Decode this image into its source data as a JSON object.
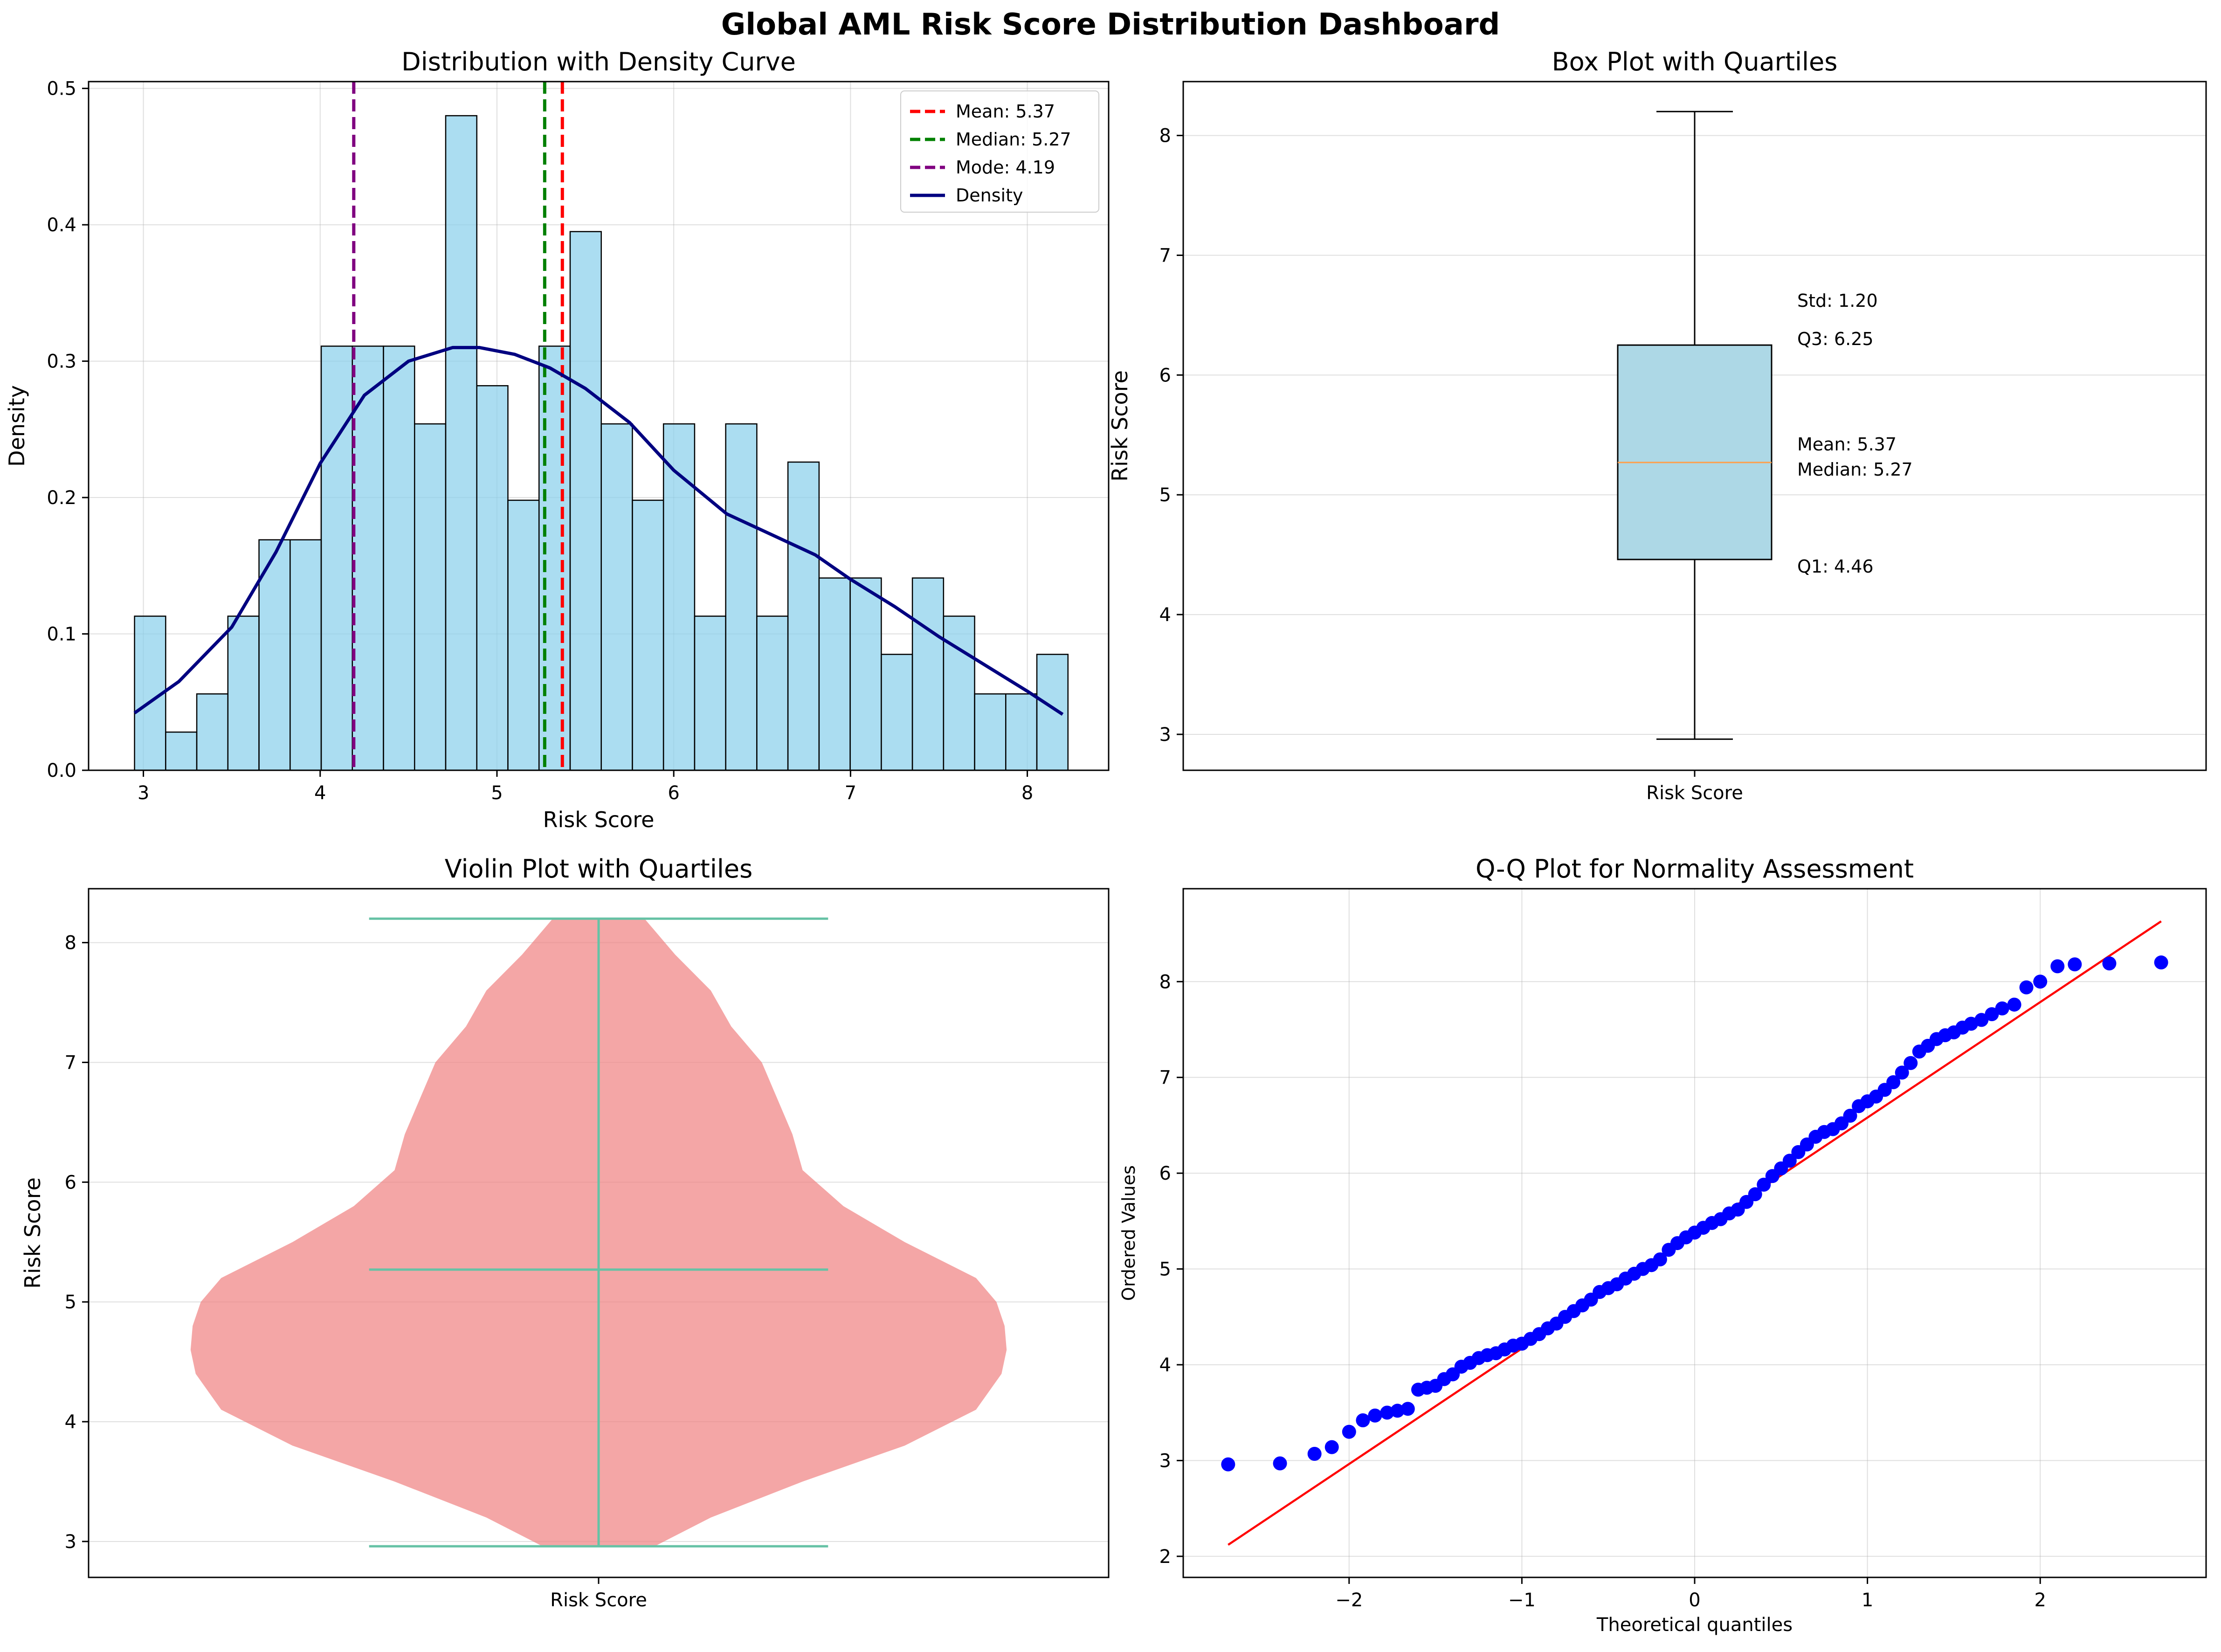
{
  "title": "Global AML Risk Score Distribution Dashboard",
  "colors": {
    "hist_fill": "#87ceeb",
    "hist_edge": "#000000",
    "mean_line": "#ff0000",
    "median_line": "#008000",
    "mode_line": "#800080",
    "density_line": "#000080",
    "box_fill": "#add8e6",
    "box_median": "#ff9f4a",
    "violin_fill": "#f08080",
    "violin_lines": "#66c2a5",
    "qq_points": "#0000ff",
    "qq_line": "#ff0000"
  },
  "chart_data": [
    {
      "type": "bar",
      "title": "Distribution with Density Curve",
      "xlabel": "Risk Score",
      "ylabel": "Density",
      "xlim": [
        2.69,
        8.46
      ],
      "ylim": [
        0,
        0.505
      ],
      "xticks": [
        "3",
        "4",
        "5",
        "6",
        "7",
        "8"
      ],
      "xtick_values": [
        3,
        4,
        5,
        6,
        7,
        8
      ],
      "yticks": [
        "0.0",
        "0.1",
        "0.2",
        "0.3",
        "0.4",
        "0.5"
      ],
      "ytick_values": [
        0,
        0.1,
        0.2,
        0.3,
        0.4,
        0.5
      ],
      "grid": true,
      "legend_position": "top-right",
      "bin_start": 2.95,
      "bin_width": 0.176,
      "values": [
        0.113,
        0.028,
        0.056,
        0.113,
        0.169,
        0.169,
        0.311,
        0.311,
        0.311,
        0.254,
        0.48,
        0.282,
        0.198,
        0.311,
        0.395,
        0.254,
        0.198,
        0.254,
        0.113,
        0.254,
        0.113,
        0.226,
        0.141,
        0.141,
        0.085,
        0.141,
        0.113,
        0.056,
        0.056,
        0.085
      ],
      "density_curve": {
        "x": [
          2.95,
          3.2,
          3.5,
          3.75,
          4.0,
          4.25,
          4.5,
          4.75,
          4.9,
          5.1,
          5.3,
          5.5,
          5.75,
          6.0,
          6.3,
          6.6,
          6.8,
          7.0,
          7.25,
          7.5,
          7.75,
          8.0,
          8.2
        ],
        "y": [
          0.042,
          0.065,
          0.105,
          0.16,
          0.225,
          0.275,
          0.3,
          0.31,
          0.31,
          0.305,
          0.295,
          0.28,
          0.255,
          0.22,
          0.188,
          0.17,
          0.158,
          0.14,
          0.12,
          0.098,
          0.078,
          0.058,
          0.041
        ]
      },
      "ref_lines": [
        {
          "value": 5.37,
          "label": "Mean: 5.37",
          "color": "#ff0000"
        },
        {
          "value": 5.27,
          "label": "Median: 5.27",
          "color": "#008000"
        },
        {
          "value": 4.19,
          "label": "Mode: 4.19",
          "color": "#800080"
        }
      ],
      "density_label": "Density"
    },
    {
      "type": "box",
      "title": "Box Plot with Quartiles",
      "ylabel": "Risk Score",
      "category": "Risk Score",
      "ylim": [
        2.7,
        8.45
      ],
      "yticks": [
        "3",
        "4",
        "5",
        "6",
        "7",
        "8"
      ],
      "ytick_values": [
        3,
        4,
        5,
        6,
        7,
        8
      ],
      "grid": true,
      "min": 2.96,
      "q1": 4.46,
      "median": 5.27,
      "q3": 6.25,
      "max": 8.2,
      "mean": 5.37,
      "std": 1.2,
      "annotations": [
        {
          "text": "Std: 1.20",
          "y": 6.57
        },
        {
          "text": "Q3: 6.25",
          "y": 6.25
        },
        {
          "text": "Mean: 5.37",
          "y": 5.37
        },
        {
          "text": "Median: 5.27",
          "y": 5.27
        },
        {
          "text": "Q1: 4.46",
          "y": 4.46
        }
      ]
    },
    {
      "type": "violin",
      "title": "Violin Plot with Quartiles",
      "ylabel": "Risk Score",
      "category": "Risk Score",
      "ylim": [
        2.7,
        8.45
      ],
      "yticks": [
        "3",
        "4",
        "5",
        "6",
        "7",
        "8"
      ],
      "ytick_values": [
        3,
        4,
        5,
        6,
        7,
        8
      ],
      "grid": true,
      "min": 2.96,
      "median": 5.27,
      "max": 8.2,
      "max_half_width": 0.4,
      "profile": {
        "y": [
          2.96,
          3.2,
          3.5,
          3.8,
          4.1,
          4.4,
          4.6,
          4.8,
          5.0,
          5.2,
          5.5,
          5.8,
          6.1,
          6.4,
          6.7,
          7.0,
          7.3,
          7.6,
          7.9,
          8.2
        ],
        "half_width": [
          0.055,
          0.11,
          0.2,
          0.3,
          0.37,
          0.395,
          0.4,
          0.398,
          0.39,
          0.37,
          0.3,
          0.24,
          0.2,
          0.19,
          0.175,
          0.16,
          0.13,
          0.11,
          0.075,
          0.045
        ]
      }
    },
    {
      "type": "scatter",
      "title": "Q-Q Plot for Normality Assessment",
      "xlabel": "Theoretical quantiles",
      "ylabel": "Ordered Values",
      "xlim": [
        -2.96,
        2.96
      ],
      "ylim": [
        1.78,
        8.97
      ],
      "xticks": [
        "−2",
        "−1",
        "0",
        "1",
        "2"
      ],
      "xtick_values": [
        -2,
        -1,
        0,
        1,
        2
      ],
      "yticks": [
        "2",
        "3",
        "4",
        "5",
        "6",
        "7",
        "8"
      ],
      "ytick_values": [
        2,
        3,
        4,
        5,
        6,
        7,
        8
      ],
      "grid": true,
      "fit_line": {
        "x": [
          -2.7,
          2.7
        ],
        "y": [
          2.12,
          8.63
        ]
      },
      "points": {
        "x": [
          -2.7,
          -2.4,
          -2.2,
          -2.1,
          -2.0,
          -1.92,
          -1.85,
          -1.78,
          -1.72,
          -1.66,
          -1.6,
          -1.55,
          -1.5,
          -1.45,
          -1.4,
          -1.35,
          -1.3,
          -1.25,
          -1.2,
          -1.15,
          -1.1,
          -1.05,
          -1.0,
          -0.95,
          -0.9,
          -0.85,
          -0.8,
          -0.75,
          -0.7,
          -0.65,
          -0.6,
          -0.55,
          -0.5,
          -0.45,
          -0.4,
          -0.35,
          -0.3,
          -0.25,
          -0.2,
          -0.15,
          -0.1,
          -0.05,
          0.0,
          0.05,
          0.1,
          0.15,
          0.2,
          0.25,
          0.3,
          0.35,
          0.4,
          0.45,
          0.5,
          0.55,
          0.6,
          0.65,
          0.7,
          0.75,
          0.8,
          0.85,
          0.9,
          0.95,
          1.0,
          1.05,
          1.1,
          1.15,
          1.2,
          1.25,
          1.3,
          1.35,
          1.4,
          1.45,
          1.5,
          1.55,
          1.6,
          1.66,
          1.72,
          1.78,
          1.85,
          1.92,
          2.0,
          2.1,
          2.2,
          2.4,
          2.7
        ],
        "y": [
          2.96,
          2.97,
          3.07,
          3.14,
          3.3,
          3.42,
          3.47,
          3.5,
          3.52,
          3.54,
          3.74,
          3.76,
          3.78,
          3.85,
          3.9,
          3.98,
          4.02,
          4.07,
          4.1,
          4.12,
          4.16,
          4.2,
          4.22,
          4.27,
          4.32,
          4.38,
          4.43,
          4.5,
          4.56,
          4.62,
          4.68,
          4.76,
          4.8,
          4.84,
          4.9,
          4.95,
          5.0,
          5.04,
          5.1,
          5.2,
          5.27,
          5.33,
          5.38,
          5.43,
          5.48,
          5.52,
          5.58,
          5.62,
          5.7,
          5.78,
          5.88,
          5.97,
          6.05,
          6.13,
          6.22,
          6.3,
          6.38,
          6.43,
          6.46,
          6.52,
          6.6,
          6.7,
          6.75,
          6.8,
          6.87,
          6.95,
          7.05,
          7.15,
          7.27,
          7.33,
          7.4,
          7.44,
          7.47,
          7.52,
          7.56,
          7.6,
          7.66,
          7.72,
          7.76,
          7.94,
          8.0,
          8.16,
          8.18,
          8.19,
          8.2
        ]
      }
    }
  ]
}
